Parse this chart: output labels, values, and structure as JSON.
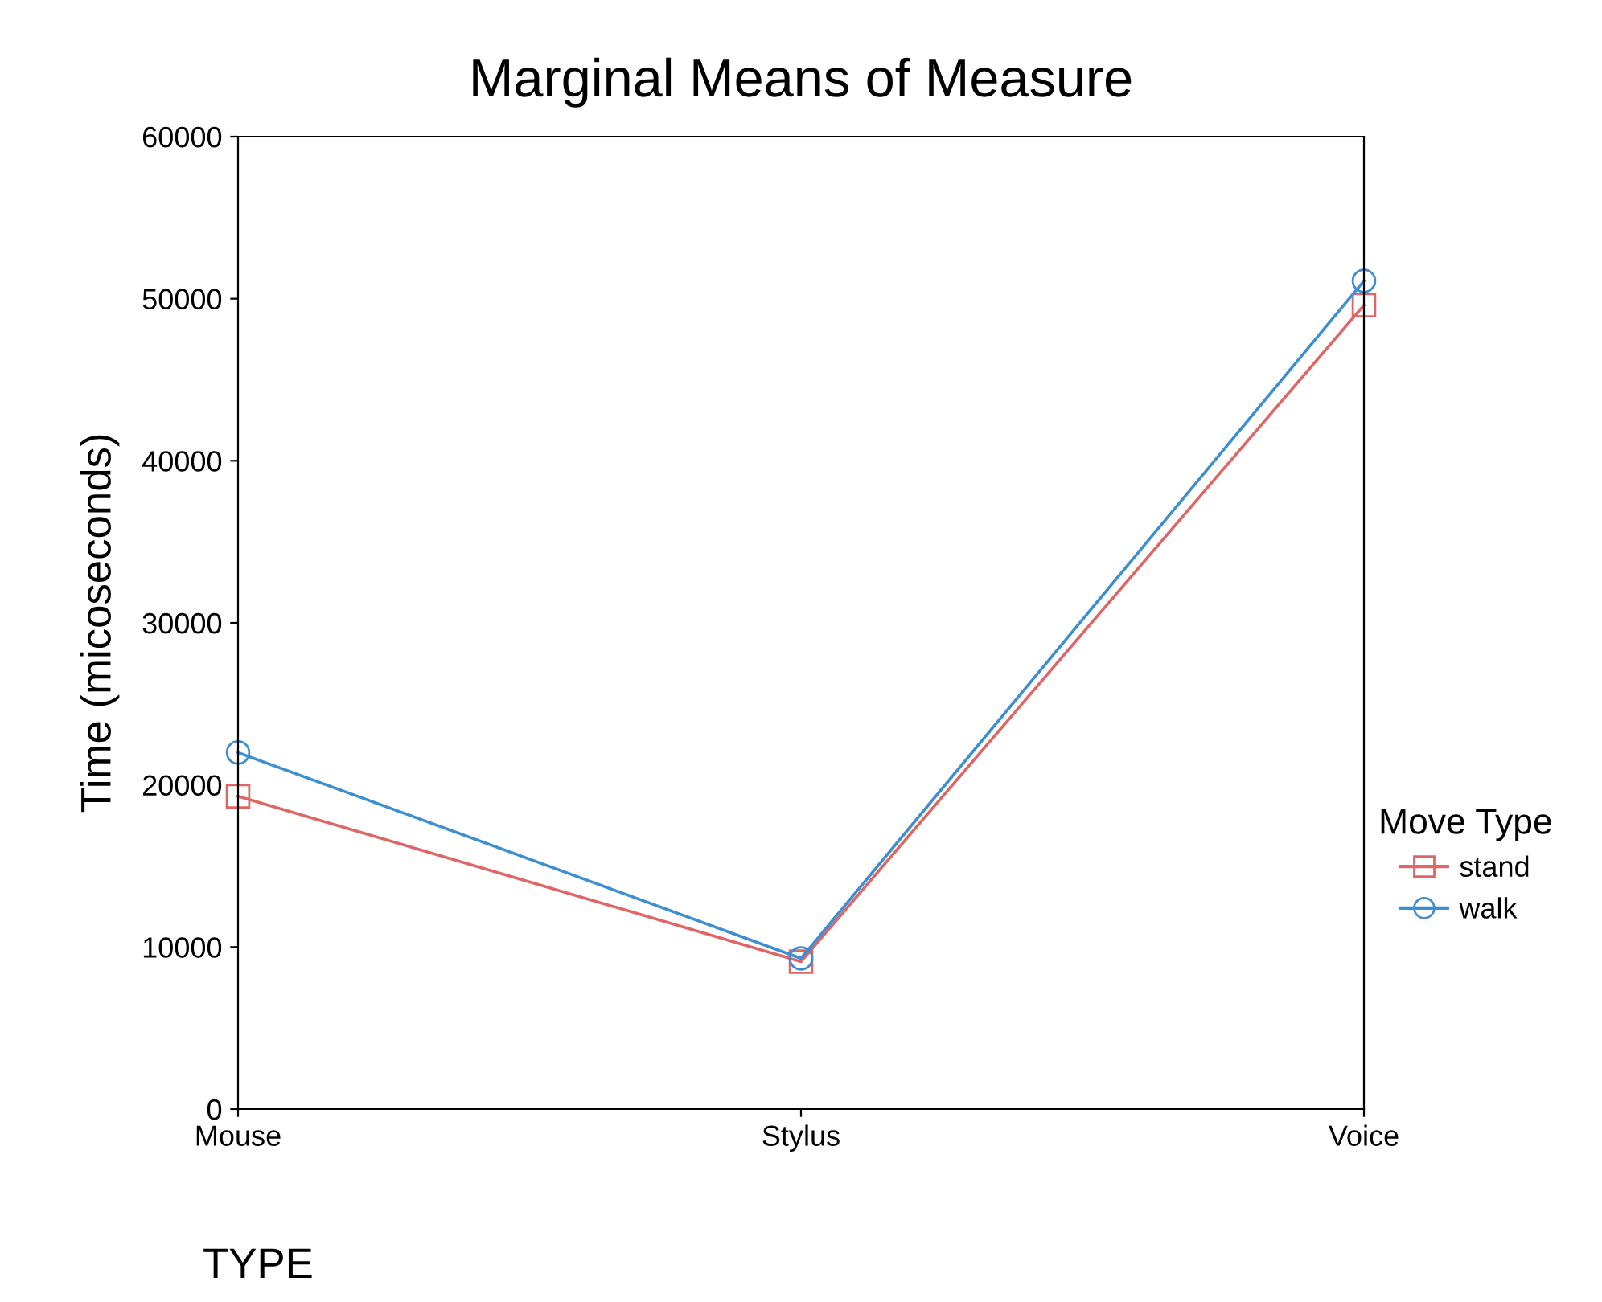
{
  "chart_data": {
    "type": "line",
    "title": "Marginal Means of Measure",
    "xlabel": "TYPE",
    "ylabel": "Time (micoseconds)",
    "legend_title": "Move Type",
    "categories": [
      "Mouse",
      "Stylus",
      "Voice"
    ],
    "series": [
      {
        "name": "stand",
        "color": "#e06666",
        "marker": "square",
        "values": [
          19300,
          9100,
          49600
        ]
      },
      {
        "name": "walk",
        "color": "#3d8fd1",
        "marker": "circle",
        "values": [
          22000,
          9300,
          51100
        ]
      }
    ],
    "ylim": [
      0,
      60000
    ],
    "yticks": [
      0,
      10000,
      20000,
      30000,
      40000,
      50000,
      60000
    ],
    "grid": false,
    "legend": "right",
    "line_style": "solid"
  }
}
